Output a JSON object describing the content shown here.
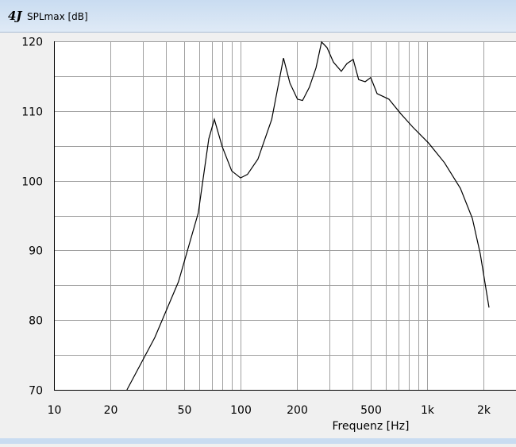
{
  "window": {
    "icon": "4J"
  },
  "chart_data": {
    "type": "line",
    "title": "SPLmax [dB]",
    "x_label": "Frequenz [Hz]",
    "x": [
      24.6,
      34.7,
      46.5,
      59.4,
      67.6,
      72.4,
      79.8,
      89.7,
      100,
      109,
      124,
      147,
      170,
      184,
      202,
      215,
      234,
      254,
      272,
      291,
      315,
      347,
      372,
      402,
      430,
      466,
      499,
      540,
      625,
      724,
      838,
      1020,
      1240,
      1510,
      1750,
      1930,
      2150
    ],
    "values": [
      70,
      77.5,
      85.5,
      95.4,
      106,
      108.8,
      104.9,
      101.4,
      100.4,
      100.9,
      103.1,
      108.8,
      117.6,
      114,
      111.7,
      111.5,
      113.4,
      116.2,
      119.9,
      119.1,
      117,
      115.7,
      116.8,
      117.4,
      114.5,
      114.2,
      114.8,
      112.5,
      111.7,
      109.6,
      107.7,
      105.4,
      102.6,
      98.9,
      94.6,
      89.5,
      81.8
    ],
    "color": "#000000",
    "log_x": true,
    "xlim": [
      10,
      3000
    ],
    "xticks": [
      10,
      20,
      50,
      100,
      200,
      500,
      {
        "value": 1000,
        "label": "1k"
      },
      {
        "value": 2000,
        "label": "2k"
      }
    ],
    "xgrid": [
      30,
      40,
      60,
      70,
      80,
      90,
      300,
      400,
      600,
      700,
      800,
      900
    ],
    "ylim": [
      70,
      120
    ],
    "yticks": [
      70,
      80,
      90,
      100,
      110,
      120
    ],
    "ygrid": [
      75,
      85,
      95,
      105,
      115
    ],
    "grid": true
  }
}
